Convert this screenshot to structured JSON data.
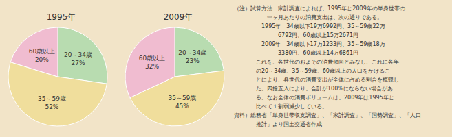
{
  "chart_data": [
    {
      "type": "pie",
      "title": "1995年",
      "categories": [
        "20～34歳",
        "35～59歳",
        "60歳以上"
      ],
      "values": [
        27,
        52,
        20
      ],
      "value_labels": [
        "27%",
        "52%",
        "20%"
      ],
      "data_labels": true,
      "colors": [
        "#b8dcb0",
        "#f0de9c",
        "#f0bcd0"
      ]
    },
    {
      "type": "pie",
      "title": "2009年",
      "categories": [
        "20～34歳",
        "35～59歳",
        "60歳以上"
      ],
      "values": [
        23,
        45,
        32
      ],
      "value_labels": [
        "23%",
        "45%",
        "32%"
      ],
      "data_labels": true,
      "colors": [
        "#b8dcb0",
        "#f0de9c",
        "#f0bcd0"
      ],
      "annotations": [
        "（注）試算方法：家計調査によれば、1995年と2009年の単身世帯の",
        "　　　　　　一ヶ月あたりの消費支出は、次の通りである。",
        "　　　　　1995年　34歳以下19万6992円、35～59歳22万",
        "　　　　　　　　6792円、60歳以上15万2671円",
        "　　　　　2009年　34歳以下17万1233円、35～59歳18万",
        "　　　　　　　　3380円、60歳以上14万6861円",
        "　　　　これを、各世代のおよその消費傾向とみなし、これに各年",
        "　　　　の20～34歳、35～59歳、60歳以上の人口をかけるこ",
        "　　　　とにより、各世代の消費支出が全体に占める割合を概観し",
        "　　　　た。四捨五入により、合計が100%にならない場合があ",
        "　　　　る。なお全体の消費ボリュームは、2009年は1995年と",
        "　　　　比べて１割弱減少している。",
        "資料）総務省「単身世帯収支調査」、「家計調査」、「国勢調査」、「人口",
        "　　　　推計」より国土交通省作成"
      ]
    }
  ]
}
